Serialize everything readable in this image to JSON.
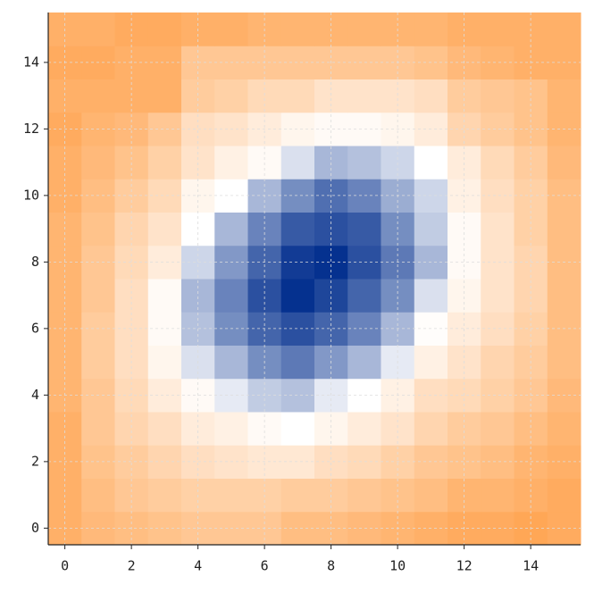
{
  "chart_data": {
    "type": "heatmap",
    "x": [
      0,
      1,
      2,
      3,
      4,
      5,
      6,
      7,
      8,
      9,
      10,
      11,
      12,
      13,
      14,
      15
    ],
    "y": [
      0,
      1,
      2,
      3,
      4,
      5,
      6,
      7,
      8,
      9,
      10,
      11,
      12,
      13,
      14,
      15
    ],
    "z": [
      [
        0.85,
        0.75,
        0.7,
        0.65,
        0.6,
        0.6,
        0.6,
        0.7,
        0.7,
        0.75,
        0.8,
        0.85,
        0.9,
        0.9,
        0.95,
        0.9
      ],
      [
        0.85,
        0.7,
        0.6,
        0.55,
        0.5,
        0.5,
        0.5,
        0.55,
        0.55,
        0.6,
        0.65,
        0.7,
        0.8,
        0.8,
        0.85,
        0.9
      ],
      [
        0.85,
        0.65,
        0.55,
        0.45,
        0.35,
        0.3,
        0.25,
        0.25,
        0.35,
        0.4,
        0.5,
        0.6,
        0.65,
        0.7,
        0.8,
        0.85
      ],
      [
        0.85,
        0.6,
        0.45,
        0.35,
        0.2,
        0.15,
        0.05,
        0,
        0.1,
        0.2,
        0.3,
        0.45,
        0.55,
        0.6,
        0.7,
        0.8
      ],
      [
        0.8,
        0.6,
        0.4,
        0.2,
        0.05,
        -0.1,
        -0.25,
        -0.3,
        -0.1,
        0,
        0.15,
        0.35,
        0.4,
        0.5,
        0.6,
        0.75
      ],
      [
        0.8,
        0.55,
        0.35,
        0.1,
        -0.15,
        -0.35,
        -0.55,
        -0.65,
        -0.5,
        -0.35,
        -0.1,
        0.15,
        0.3,
        0.45,
        0.55,
        0.7
      ],
      [
        0.8,
        0.55,
        0.35,
        0.05,
        -0.3,
        -0.55,
        -0.75,
        -0.85,
        -0.75,
        -0.6,
        -0.35,
        0.02,
        0.2,
        0.35,
        0.5,
        0.7
      ],
      [
        0.8,
        0.6,
        0.35,
        0.05,
        -0.35,
        -0.6,
        -0.85,
        -1,
        -0.9,
        -0.75,
        -0.55,
        -0.15,
        0.1,
        0.3,
        0.45,
        0.7
      ],
      [
        0.8,
        0.6,
        0.4,
        0.2,
        -0.2,
        -0.5,
        -0.75,
        -0.95,
        -1,
        -0.85,
        -0.65,
        -0.35,
        0.05,
        0.3,
        0.45,
        0.7
      ],
      [
        0.8,
        0.65,
        0.45,
        0.3,
        0,
        -0.35,
        -0.6,
        -0.8,
        -0.85,
        -0.8,
        -0.55,
        -0.25,
        0.05,
        0.3,
        0.5,
        0.7
      ],
      [
        0.85,
        0.7,
        0.55,
        0.4,
        0.1,
        0,
        -0.35,
        -0.55,
        -0.7,
        -0.6,
        -0.4,
        -0.2,
        0.15,
        0.35,
        0.5,
        0.7
      ],
      [
        0.85,
        0.75,
        0.65,
        0.5,
        0.3,
        0.15,
        0.05,
        -0.15,
        -0.35,
        -0.3,
        -0.2,
        0,
        0.2,
        0.4,
        0.55,
        0.75
      ],
      [
        0.9,
        0.8,
        0.75,
        0.6,
        0.35,
        0.3,
        0.2,
        0.1,
        0.05,
        0.05,
        0.1,
        0.2,
        0.45,
        0.55,
        0.65,
        0.8
      ],
      [
        0.85,
        0.85,
        0.85,
        0.85,
        0.55,
        0.5,
        0.4,
        0.4,
        0.3,
        0.3,
        0.3,
        0.35,
        0.55,
        0.6,
        0.65,
        0.8
      ],
      [
        0.9,
        0.9,
        0.85,
        0.85,
        0.6,
        0.6,
        0.6,
        0.6,
        0.6,
        0.6,
        0.6,
        0.65,
        0.75,
        0.8,
        0.85,
        0.85
      ],
      [
        0.85,
        0.85,
        0.9,
        0.9,
        0.85,
        0.85,
        0.8,
        0.8,
        0.8,
        0.8,
        0.8,
        0.8,
        0.85,
        0.85,
        0.85,
        0.85
      ]
    ],
    "zlim": [
      -1,
      1
    ],
    "colormap": [
      "#05318f",
      "#ffffff",
      "#ffa24d"
    ],
    "xlim": [
      -0.5,
      15.5
    ],
    "ylim": [
      -0.5,
      15.5
    ],
    "xticks": [
      0,
      2,
      4,
      6,
      8,
      10,
      12,
      14
    ],
    "yticks": [
      0,
      2,
      4,
      6,
      8,
      10,
      12,
      14
    ],
    "grid": true
  }
}
